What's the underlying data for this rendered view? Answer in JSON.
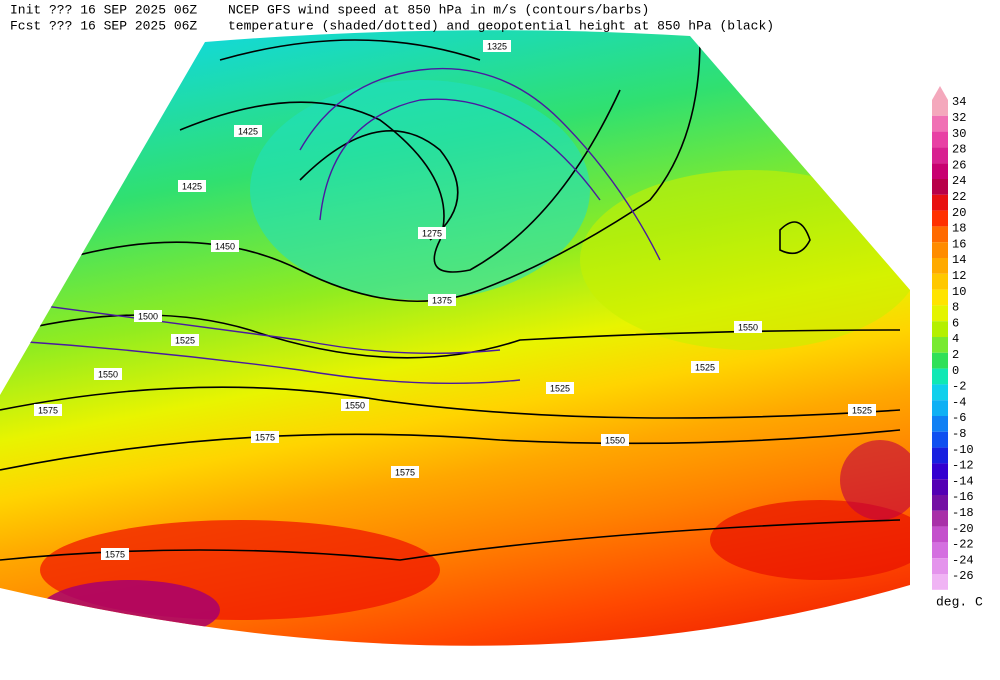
{
  "header": {
    "init": "Init  ??? 16 SEP 2025 06Z",
    "fcst": "Fcst ??? 16 SEP 2025 06Z",
    "title_line1": "NCEP GFS wind speed at 850 hPa in m/s (contours/barbs)",
    "title_line2": "temperature (shaded/dotted) and geopotential height at 850 hPa (black)"
  },
  "colorbar": {
    "entries": [
      {
        "label": "34",
        "color": "#f4a8bc"
      },
      {
        "label": "32",
        "color": "#f070b4"
      },
      {
        "label": "30",
        "color": "#e840a4"
      },
      {
        "label": "28",
        "color": "#d82090"
      },
      {
        "label": "26",
        "color": "#c80070"
      },
      {
        "label": "24",
        "color": "#b80048"
      },
      {
        "label": "22",
        "color": "#e81010"
      },
      {
        "label": "20",
        "color": "#ff3000"
      },
      {
        "label": "18",
        "color": "#ff6a00"
      },
      {
        "label": "16",
        "color": "#ff8c00"
      },
      {
        "label": "14",
        "color": "#ffaa00"
      },
      {
        "label": "12",
        "color": "#ffc800"
      },
      {
        "label": "10",
        "color": "#ffe400"
      },
      {
        "label": "8",
        "color": "#e4f400"
      },
      {
        "label": "6",
        "color": "#b4f000"
      },
      {
        "label": "4",
        "color": "#78ea30"
      },
      {
        "label": "2",
        "color": "#30e058"
      },
      {
        "label": "0",
        "color": "#10e8b4"
      },
      {
        "label": "-2",
        "color": "#10d0ec"
      },
      {
        "label": "-4",
        "color": "#10b0f4"
      },
      {
        "label": "-6",
        "color": "#1080f4"
      },
      {
        "label": "-8",
        "color": "#1050f0"
      },
      {
        "label": "-10",
        "color": "#1820e0"
      },
      {
        "label": "-12",
        "color": "#3400d0"
      },
      {
        "label": "-14",
        "color": "#5400b4"
      },
      {
        "label": "-16",
        "color": "#7410a4"
      },
      {
        "label": "-18",
        "color": "#a830a8"
      },
      {
        "label": "-20",
        "color": "#c450cc"
      },
      {
        "label": "-22",
        "color": "#d470e0"
      },
      {
        "label": "-24",
        "color": "#e494ec"
      },
      {
        "label": "-26",
        "color": "#f0b4f4"
      }
    ],
    "unit": "deg. C"
  },
  "contour_labels": [
    "1325",
    "1425",
    "1425",
    "1450",
    "1275",
    "1375",
    "1500",
    "1525",
    "1550",
    "1575",
    "1575",
    "1575",
    "1550",
    "1550",
    "1525",
    "1525",
    "1550",
    "1525",
    "1575"
  ]
}
